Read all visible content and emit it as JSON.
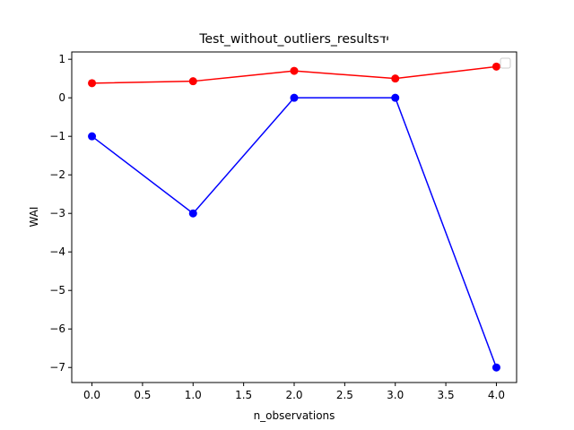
{
  "chart_data": {
    "type": "line",
    "title": "Test_without_outliers_resultsיד",
    "xlabel": "n_observations",
    "ylabel": "WAI",
    "x": [
      0,
      1,
      2,
      3,
      4
    ],
    "xlim": [
      -0.2,
      4.2
    ],
    "ylim": [
      -7.39,
      1.19
    ],
    "xticks": [
      0.0,
      0.5,
      1.0,
      1.5,
      2.0,
      2.5,
      3.0,
      3.5,
      4.0
    ],
    "xtick_labels": [
      "0.0",
      "0.5",
      "1.0",
      "1.5",
      "2.0",
      "2.5",
      "3.0",
      "3.5",
      "4.0"
    ],
    "yticks": [
      1,
      0,
      -1,
      -2,
      -3,
      -4,
      -5,
      -6,
      -7
    ],
    "ytick_labels": [
      "1",
      "0",
      "−1",
      "−2",
      "−3",
      "−4",
      "−5",
      "−6",
      "−7"
    ],
    "grid": false,
    "legend": "top-right (empty)",
    "series": [
      {
        "color": "#ff0000",
        "marker": "circle",
        "values": [
          0.38,
          0.43,
          0.7,
          0.5,
          0.81
        ]
      },
      {
        "color": "#0000ff",
        "marker": "circle",
        "values": [
          -1,
          -3,
          0,
          0,
          -7
        ]
      }
    ]
  }
}
